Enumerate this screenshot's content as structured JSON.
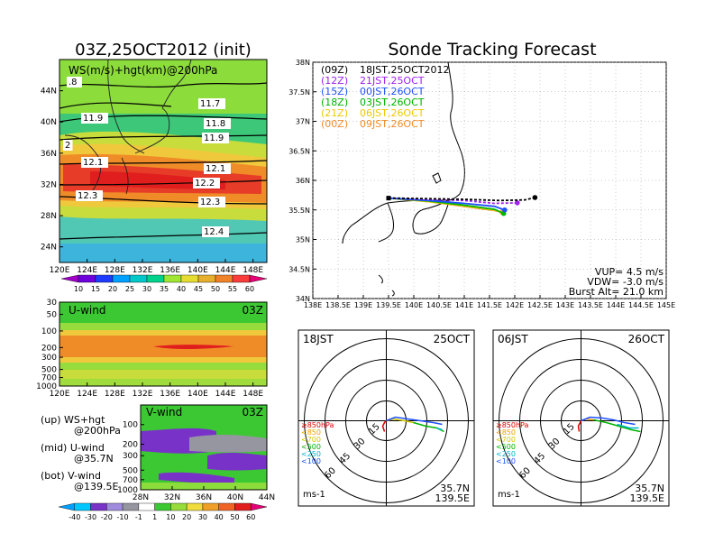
{
  "left_title": "03Z,25OCT2012 (init)",
  "right_title": "Sonde Tracking Forecast",
  "map_panel": {
    "label": "WS(m/s)+hgt(km)@200hPa",
    "x_ticks": [
      "120E",
      "124E",
      "128E",
      "132E",
      "136E",
      "140E",
      "144E",
      "148E"
    ],
    "y_ticks": [
      "44N",
      "40N",
      "36N",
      "32N",
      "28N",
      "24N"
    ],
    "contour_labels": [
      ".8",
      "11.9",
      "2",
      "12.1",
      "12.3",
      "11.7",
      "11.8",
      "11.9",
      "12.1",
      "12.2",
      "12.3",
      "12.4"
    ]
  },
  "ws_colorbar": {
    "labels": [
      "10",
      "15",
      "20",
      "25",
      "30",
      "35",
      "40",
      "45",
      "50",
      "55",
      "60"
    ]
  },
  "u_panel": {
    "label": "U-wind",
    "time": "03Z",
    "y_ticks": [
      "30",
      "50",
      "100",
      "200",
      "300",
      "500",
      "700",
      "1000"
    ],
    "x_ticks": [
      "120E",
      "124E",
      "128E",
      "132E",
      "136E",
      "140E",
      "144E",
      "148E"
    ]
  },
  "v_panel": {
    "label": "V-wind",
    "time": "03Z",
    "y_ticks": [
      "100",
      "200",
      "300",
      "500",
      "700",
      "1000"
    ],
    "x_ticks": [
      "28N",
      "32N",
      "36N",
      "40N",
      "44N"
    ]
  },
  "legend_notes": {
    "up_line1": "(up) WS+hgt",
    "up_line2": "@200hPa",
    "mid_line1": "(mid) U-wind",
    "mid_line2": "@35.7N",
    "bot_line1": "(bot) V-wind",
    "bot_line2": "@139.5E"
  },
  "wind_colorbar": {
    "labels": [
      "-40",
      "-30",
      "-20",
      "-10",
      "-1",
      "1",
      "10",
      "20",
      "30",
      "40",
      "50",
      "60"
    ]
  },
  "track_panel": {
    "x_ticks": [
      "138E",
      "138.5E",
      "139E",
      "139.5E",
      "140E",
      "140.5E",
      "141E",
      "141.5E",
      "142E",
      "142.5E",
      "143E",
      "143.5E",
      "144E",
      "144.5E",
      "145E"
    ],
    "y_ticks": [
      "38N",
      "37.5N",
      "37N",
      "36.5N",
      "36N",
      "35.5N",
      "35N",
      "34.5N",
      "34N"
    ],
    "legend": [
      {
        "z": "(09Z)",
        "t": "18JST,25OCT2012",
        "color": "#000000"
      },
      {
        "z": "(12Z)",
        "t": "21JST,25OCT",
        "color": "#a020f0"
      },
      {
        "z": "(15Z)",
        "t": "00JST,26OCT",
        "color": "#1e50ff"
      },
      {
        "z": "(18Z)",
        "t": "03JST,26OCT",
        "color": "#00b400"
      },
      {
        "z": "(21Z)",
        "t": "06JST,26OCT",
        "color": "#f0c800"
      },
      {
        "z": "(00Z)",
        "t": "09JST,26OCT",
        "color": "#f08c28"
      }
    ],
    "vup": "VUP= 4.5 m/s",
    "vdw": "VDW= -3.0 m/s",
    "burst": "Burst Alt= 21.0 km"
  },
  "polar_left": {
    "time": "18JST",
    "date": "25OCT",
    "loc1": "35.7N",
    "loc2": "139.5E",
    "unit": "ms-1",
    "ring_labels": [
      "15",
      "30",
      "45",
      "60"
    ],
    "pressure_legend": [
      {
        "t": "≥850hPa",
        "color": "#e00000"
      },
      {
        "t": "<850",
        "color": "#f0a000"
      },
      {
        "t": "<700",
        "color": "#d2c800"
      },
      {
        "t": "<500",
        "color": "#00b400"
      },
      {
        "t": "<250",
        "color": "#00b4c8"
      },
      {
        "t": "<100",
        "color": "#1e50ff"
      }
    ]
  },
  "polar_right": {
    "time": "06JST",
    "date": "26OCT",
    "loc1": "35.7N",
    "loc2": "139.5E",
    "unit": "ms-1",
    "ring_labels": [
      "15",
      "30",
      "45",
      "60"
    ],
    "pressure_legend": [
      {
        "t": "≥850hPa",
        "color": "#e00000"
      },
      {
        "t": "<850",
        "color": "#f0a000"
      },
      {
        "t": "<700",
        "color": "#d2c800"
      },
      {
        "t": "<500",
        "color": "#00b400"
      },
      {
        "t": "<250",
        "color": "#00b4c8"
      },
      {
        "t": "<100",
        "color": "#1e50ff"
      }
    ]
  },
  "chart_data": [
    {
      "type": "heatmap",
      "title": "WS(m/s)+hgt(km)@200hPa",
      "xlim": [
        "120E",
        "150E"
      ],
      "ylim": [
        "22N",
        "48N"
      ],
      "colorbar_levels": [
        10,
        15,
        20,
        25,
        30,
        35,
        40,
        45,
        50,
        55,
        60
      ],
      "jet_core_lat": "32N",
      "contour_heights_km": [
        11.7,
        11.8,
        11.9,
        12.1,
        12.2,
        12.3,
        12.4
      ]
    },
    {
      "type": "line",
      "title": "Sonde Tracking Forecast",
      "xlim": [
        138,
        145
      ],
      "ylim": [
        34,
        38
      ],
      "launch": {
        "lon": 139.5,
        "lat": 35.7
      },
      "series": [
        {
          "name": "(09Z) 18JST,25OCT2012",
          "x": [
            139.5,
            140.3,
            141.0,
            141.7,
            142.2,
            142.4
          ],
          "y": [
            35.7,
            35.69,
            35.68,
            35.66,
            35.67,
            35.71
          ]
        },
        {
          "name": "(12Z) 21JST,25OCT",
          "x": [
            139.5,
            140.3,
            141.0,
            141.6,
            142.05
          ],
          "y": [
            35.7,
            35.68,
            35.66,
            35.61,
            35.62
          ]
        },
        {
          "name": "(15Z) 00JST,26OCT",
          "x": [
            139.5,
            140.3,
            141.0,
            141.6,
            141.8
          ],
          "y": [
            35.7,
            35.66,
            35.61,
            35.56,
            35.5
          ]
        },
        {
          "name": "(18Z) 03JST,26OCT",
          "x": [
            139.5,
            140.3,
            141.0,
            141.6,
            141.78
          ],
          "y": [
            35.7,
            35.65,
            35.58,
            35.51,
            35.44
          ]
        },
        {
          "name": "(21Z) 06JST,26OCT",
          "x": [
            139.5,
            140.3,
            141.0,
            141.6,
            141.77
          ],
          "y": [
            35.7,
            35.64,
            35.57,
            35.5,
            35.45
          ]
        },
        {
          "name": "(00Z) 09JST,26OCT",
          "x": [
            139.5,
            140.3,
            141.0,
            141.6,
            141.75
          ],
          "y": [
            35.7,
            35.64,
            35.56,
            35.49,
            35.46
          ]
        }
      ]
    }
  ]
}
